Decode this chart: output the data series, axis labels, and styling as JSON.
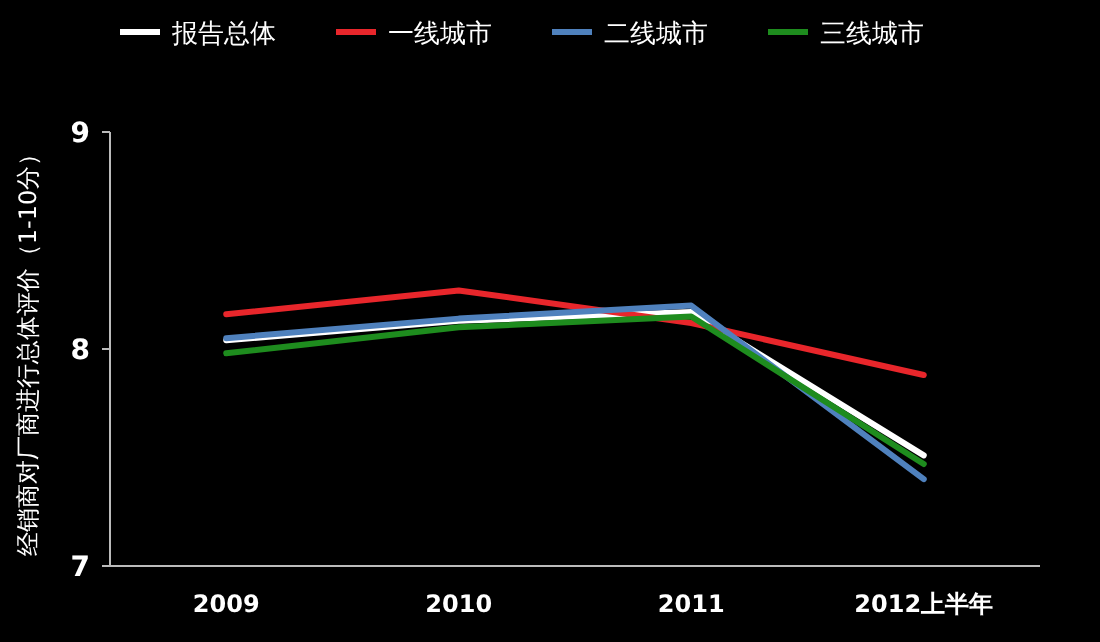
{
  "chart_data": {
    "type": "line",
    "ylabel": "经销商对厂商进行总体评价（1-10分）",
    "categories": [
      "2009",
      "2010",
      "2011",
      "2012上半年"
    ],
    "ylim": [
      7,
      9
    ],
    "yticks": [
      7,
      8,
      9
    ],
    "legend": "top",
    "grid": false,
    "marker": "none",
    "line_style": "solid",
    "series": [
      {
        "name": "报告总体",
        "color": "#ffffff",
        "values": [
          8.04,
          8.13,
          8.17,
          7.51
        ]
      },
      {
        "name": "一线城市",
        "color": "#e8262b",
        "values": [
          8.16,
          8.27,
          8.12,
          7.88
        ]
      },
      {
        "name": "二线城市",
        "color": "#4f81bd",
        "values": [
          8.05,
          8.14,
          8.2,
          7.4
        ]
      },
      {
        "name": "三线城市",
        "color": "#1e8c1e",
        "values": [
          7.98,
          8.1,
          8.15,
          7.47
        ]
      }
    ]
  }
}
